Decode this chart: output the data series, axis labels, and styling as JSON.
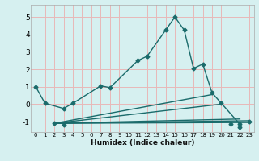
{
  "xlabel": "Humidex (Indice chaleur)",
  "background_color": "#d6f0f0",
  "grid_color": "#e8b8b8",
  "line_color": "#1a6b6b",
  "xlim": [
    -0.5,
    23.5
  ],
  "ylim": [
    -1.6,
    5.7
  ],
  "yticks": [
    -1,
    0,
    1,
    2,
    3,
    4,
    5
  ],
  "xticks": [
    0,
    1,
    2,
    3,
    4,
    5,
    6,
    7,
    8,
    9,
    10,
    11,
    12,
    13,
    14,
    15,
    16,
    17,
    18,
    19,
    20,
    21,
    22,
    23
  ],
  "main_curve_x": [
    0,
    1,
    3,
    4,
    7,
    8,
    11,
    12,
    14,
    15,
    16,
    17,
    18,
    19,
    20,
    22
  ],
  "main_curve_y": [
    1.0,
    0.05,
    -0.25,
    0.05,
    1.05,
    0.95,
    2.5,
    2.75,
    4.25,
    5.0,
    4.25,
    2.05,
    2.3,
    0.65,
    0.05,
    -1.15
  ],
  "fan_lines": [
    {
      "x": [
        2,
        19
      ],
      "y": [
        -1.1,
        0.55
      ]
    },
    {
      "x": [
        2,
        20
      ],
      "y": [
        -1.1,
        0.0
      ]
    },
    {
      "x": [
        2,
        22
      ],
      "y": [
        -1.1,
        -0.85
      ]
    },
    {
      "x": [
        2,
        23
      ],
      "y": [
        -1.1,
        -0.95
      ]
    },
    {
      "x": [
        2,
        23
      ],
      "y": [
        -1.1,
        -1.05
      ]
    }
  ],
  "fan_markers_x": [
    2,
    3,
    21,
    22,
    23
  ],
  "fan_markers_y": [
    -1.1,
    -1.2,
    -1.15,
    -1.3,
    -1.0
  ],
  "marker": "D",
  "marker_size": 2.5,
  "line_width": 1.0
}
